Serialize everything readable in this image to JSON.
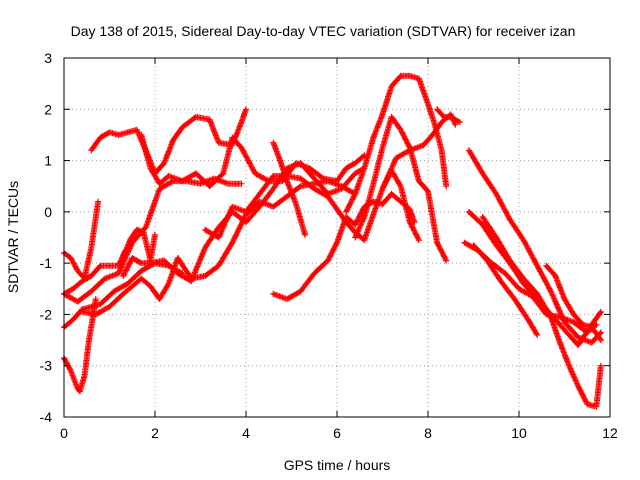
{
  "chart_data": {
    "type": "scatter",
    "title": "Day 138 of 2015, Sidereal Day-to-day VTEC variation (SDTVAR) for receiver izan",
    "xlabel": "GPS time / hours",
    "ylabel": "SDTVAR / TECUs",
    "xlim": [
      0,
      12
    ],
    "ylim": [
      -4,
      3
    ],
    "xticks": [
      0,
      2,
      4,
      6,
      8,
      10,
      12
    ],
    "yticks": [
      -4,
      -3,
      -2,
      -1,
      0,
      1,
      2,
      3
    ],
    "grid": true,
    "marker": "+",
    "color": "#ff0000",
    "series": [
      {
        "x": [
          0.0,
          0.15,
          0.3,
          0.35,
          0.45,
          0.55,
          0.7
        ],
        "y": [
          -2.85,
          -3.1,
          -3.45,
          -3.5,
          -3.2,
          -2.5,
          -1.7
        ]
      },
      {
        "x": [
          0.0,
          0.2,
          0.4,
          0.6,
          0.8,
          1.1,
          1.4,
          1.7,
          2.0,
          2.3,
          2.6
        ],
        "y": [
          -2.25,
          -2.1,
          -1.9,
          -1.85,
          -1.8,
          -1.55,
          -1.4,
          -1.15,
          -1.0,
          -1.05,
          -1.2
        ]
      },
      {
        "x": [
          0.0,
          0.15,
          0.3,
          0.45,
          0.6,
          0.75
        ],
        "y": [
          -0.8,
          -0.9,
          -1.15,
          -1.3,
          -0.7,
          0.2
        ]
      },
      {
        "x": [
          0.0,
          0.2,
          0.4,
          0.6,
          0.8,
          1.0,
          1.2,
          1.35
        ],
        "y": [
          -1.6,
          -1.5,
          -1.35,
          -1.25,
          -1.05,
          -1.05,
          -1.05,
          -0.75
        ]
      },
      {
        "x": [
          0.0,
          0.3,
          0.6,
          0.9,
          1.2,
          1.5,
          1.8,
          2.1,
          2.4,
          2.7,
          3.0,
          3.3,
          3.6,
          3.9
        ],
        "y": [
          -1.6,
          -1.75,
          -1.55,
          -1.3,
          -1.2,
          -0.6,
          -0.3,
          0.45,
          0.6,
          0.6,
          0.55,
          0.65,
          0.55,
          0.55
        ]
      },
      {
        "x": [
          0.6,
          0.8,
          1.0,
          1.2,
          1.4,
          1.6,
          1.8,
          2.0,
          2.2,
          2.4,
          2.6,
          2.9,
          3.2,
          3.4,
          3.7,
          3.9,
          4.0
        ],
        "y": [
          1.2,
          1.45,
          1.55,
          1.5,
          1.55,
          1.6,
          1.2,
          0.75,
          0.95,
          1.4,
          1.65,
          1.85,
          1.8,
          1.35,
          1.3,
          1.75,
          2.0
        ]
      },
      {
        "x": [
          1.7,
          1.9,
          2.1,
          2.3,
          2.6,
          2.9,
          3.2,
          3.5,
          3.7,
          3.9,
          4.2,
          4.5,
          4.8,
          5.1,
          5.4,
          5.7,
          6.0,
          6.2,
          6.4,
          6.6
        ],
        "y": [
          1.5,
          0.85,
          0.55,
          0.7,
          0.6,
          0.75,
          0.5,
          0.75,
          1.45,
          1.25,
          0.75,
          0.6,
          0.6,
          0.95,
          0.85,
          0.65,
          0.6,
          0.85,
          0.95,
          1.1
        ]
      },
      {
        "x": [
          0.4,
          0.7,
          1.0,
          1.3,
          1.5,
          1.7,
          1.9,
          2.1,
          2.3,
          2.5,
          2.8,
          3.1,
          3.4,
          3.7,
          4.0,
          4.3,
          4.6,
          4.9,
          5.2,
          5.5,
          5.8,
          6.1,
          6.4
        ],
        "y": [
          -1.95,
          -2.0,
          -1.85,
          -1.6,
          -1.45,
          -1.3,
          -1.45,
          -1.7,
          -1.4,
          -0.9,
          -1.3,
          -1.25,
          -1.05,
          -0.6,
          -0.05,
          0.2,
          0.1,
          0.3,
          0.5,
          0.55,
          0.6,
          0.5,
          0.35
        ]
      },
      {
        "x": [
          1.3,
          1.5,
          1.7,
          1.9,
          2.2,
          2.5,
          2.8,
          3.1,
          3.4,
          3.7,
          4.0,
          4.3,
          4.6,
          4.9,
          5.2,
          5.5,
          5.8,
          6.1,
          6.4,
          6.6
        ],
        "y": [
          -1.25,
          -0.9,
          -1.0,
          -1.0,
          -0.95,
          -1.2,
          -1.35,
          -0.7,
          -0.3,
          0.0,
          -0.2,
          0.1,
          0.45,
          0.85,
          0.95,
          0.65,
          0.35,
          0.45,
          0.75,
          0.85
        ]
      },
      {
        "x": [
          1.3,
          1.45,
          1.6,
          1.75,
          1.9,
          2.0
        ],
        "y": [
          -0.9,
          -0.55,
          -0.35,
          -0.4,
          -0.95,
          -0.45
        ]
      },
      {
        "x": [
          4.6,
          4.9,
          5.2,
          5.5,
          5.8,
          6.0,
          6.2,
          6.4,
          6.6,
          6.8,
          7.0,
          7.2,
          7.4,
          7.6,
          7.7
        ],
        "y": [
          -1.6,
          -1.7,
          -1.55,
          -1.2,
          -0.95,
          -0.6,
          -0.1,
          -0.25,
          0.1,
          0.2,
          0.15,
          0.35,
          0.2,
          0.05,
          -0.2
        ]
      },
      {
        "x": [
          4.6,
          4.75,
          4.9,
          5.1,
          5.3
        ],
        "y": [
          1.35,
          1.0,
          0.6,
          0.15,
          -0.45
        ]
      },
      {
        "x": [
          3.1,
          3.4,
          3.7,
          4.0,
          4.3,
          4.6,
          4.9,
          5.2,
          5.5,
          5.8,
          6.0,
          6.2,
          6.4,
          6.6,
          6.8,
          7.0,
          7.2,
          7.4,
          7.6,
          7.8
        ],
        "y": [
          -0.35,
          -0.5,
          0.1,
          0.0,
          0.35,
          0.7,
          0.7,
          0.65,
          0.45,
          0.3,
          0.05,
          -0.2,
          -0.4,
          -0.55,
          -0.05,
          0.45,
          0.8,
          0.5,
          -0.2,
          -0.55
        ]
      },
      {
        "x": [
          6.4,
          6.6,
          6.8,
          7.0,
          7.2,
          7.4,
          7.6,
          7.8,
          8.0,
          8.2,
          8.4
        ],
        "y": [
          -0.5,
          -0.1,
          0.55,
          1.25,
          1.85,
          1.6,
          1.25,
          0.6,
          0.4,
          -0.6,
          -0.95
        ]
      },
      {
        "x": [
          6.2,
          6.4,
          6.6,
          6.8,
          7.0,
          7.2,
          7.4,
          7.6,
          7.8,
          8.0,
          8.15,
          8.3,
          8.4
        ],
        "y": [
          0.0,
          0.35,
          0.85,
          1.45,
          1.9,
          2.45,
          2.65,
          2.65,
          2.6,
          2.1,
          1.7,
          1.2,
          0.5
        ]
      },
      {
        "x": [
          7.0,
          7.3,
          7.6,
          7.9,
          8.1,
          8.3,
          8.5,
          8.6
        ],
        "y": [
          0.45,
          1.05,
          1.2,
          1.3,
          1.5,
          1.75,
          1.9,
          1.7
        ]
      },
      {
        "x": [
          8.2,
          8.35,
          8.5,
          8.6,
          8.7
        ],
        "y": [
          2.0,
          1.85,
          1.85,
          1.8,
          1.75
        ]
      },
      {
        "x": [
          8.9,
          9.2,
          9.5,
          9.8,
          10.1,
          10.4,
          10.7,
          11.0,
          11.3,
          11.6,
          11.8
        ],
        "y": [
          1.2,
          0.75,
          0.35,
          -0.15,
          -0.55,
          -1.05,
          -1.55,
          -2.15,
          -2.45,
          -2.55,
          -2.35
        ]
      },
      {
        "x": [
          8.9,
          9.2,
          9.5,
          9.8,
          10.1,
          10.4,
          10.7,
          11.0,
          11.3,
          11.6,
          11.8
        ],
        "y": [
          0.0,
          -0.25,
          -0.65,
          -1.0,
          -1.4,
          -1.7,
          -2.0,
          -2.3,
          -2.6,
          -2.2,
          -1.95
        ]
      },
      {
        "x": [
          8.8,
          9.1,
          9.4,
          9.7,
          10.0,
          10.3,
          10.6,
          10.9,
          11.2,
          11.5,
          11.7
        ],
        "y": [
          -0.6,
          -0.75,
          -1.0,
          -1.2,
          -1.5,
          -1.65,
          -2.0,
          -2.05,
          -2.15,
          -2.35,
          -2.2
        ]
      },
      {
        "x": [
          9.2,
          9.5,
          9.8,
          10.1,
          10.4,
          10.7,
          10.9,
          11.1,
          11.3,
          11.5,
          11.7,
          11.8
        ],
        "y": [
          -0.1,
          -0.5,
          -0.95,
          -1.3,
          -1.6,
          -2.05,
          -2.55,
          -3.0,
          -3.4,
          -3.75,
          -3.8,
          -3.0
        ]
      },
      {
        "x": [
          9.0,
          9.3,
          9.6,
          9.9,
          10.2,
          10.4
        ],
        "y": [
          -0.65,
          -0.95,
          -1.35,
          -1.7,
          -2.1,
          -2.4
        ]
      },
      {
        "x": [
          10.6,
          10.8,
          11.0,
          11.2,
          11.4,
          11.6,
          11.8
        ],
        "y": [
          -1.05,
          -1.25,
          -1.7,
          -2.0,
          -2.2,
          -2.25,
          -2.5
        ]
      }
    ]
  }
}
